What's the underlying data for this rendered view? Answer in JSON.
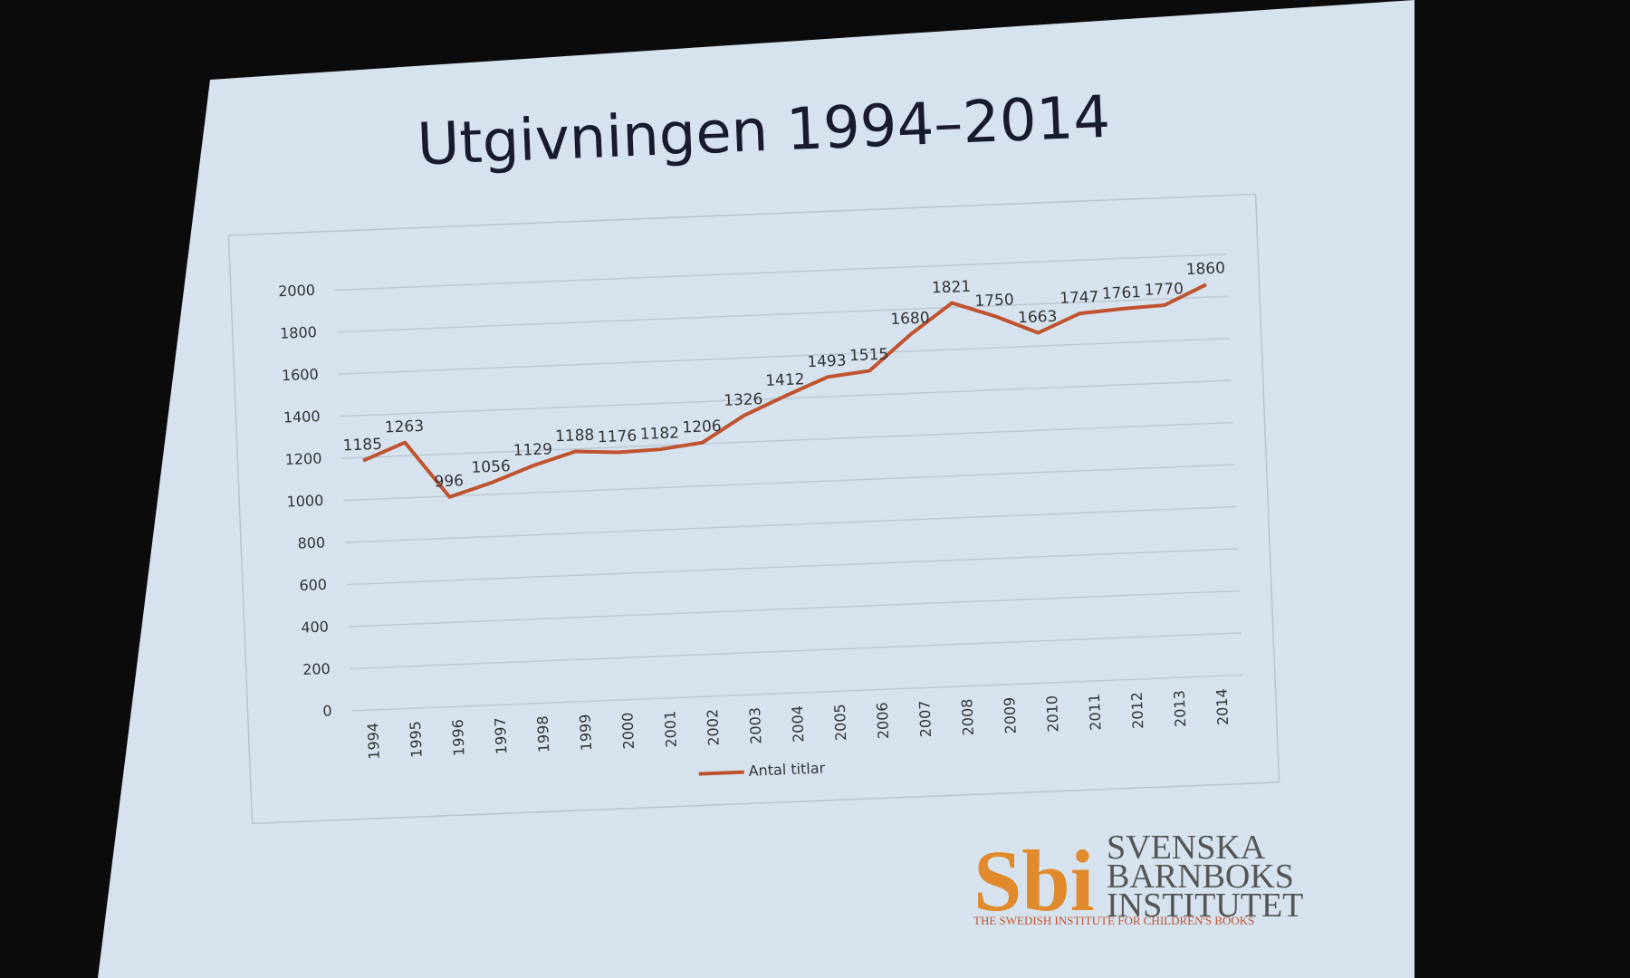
{
  "chart_data": {
    "type": "line",
    "title": "Utgivningen 1994–2014",
    "categories": [
      "1994",
      "1995",
      "1996",
      "1997",
      "1998",
      "1999",
      "2000",
      "2001",
      "2002",
      "2003",
      "2004",
      "2005",
      "2006",
      "2007",
      "2008",
      "2009",
      "2010",
      "2011",
      "2012",
      "2013",
      "2014"
    ],
    "series": [
      {
        "name": "Antal titlar",
        "color": "#c0532f",
        "values": [
          1185,
          1263,
          996,
          1056,
          1129,
          1188,
          1176,
          1182,
          1206,
          1326,
          1412,
          1493,
          1515,
          1680,
          1821,
          1750,
          1663,
          1747,
          1761,
          1770,
          1860
        ]
      }
    ],
    "ylim": [
      0,
      2000
    ],
    "yticks": [
      0,
      200,
      400,
      600,
      800,
      1000,
      1200,
      1400,
      1600,
      1800,
      2000
    ],
    "grid": true,
    "data_labels": true,
    "legend": "bottom"
  },
  "logo": {
    "mark": "Sbi",
    "line1": "SVENSKA",
    "line2": "BARNBOKS",
    "line3": "INSTITUTET",
    "tagline": "THE SWEDISH INSTITUTE FOR CHILDREN'S BOOKS"
  }
}
